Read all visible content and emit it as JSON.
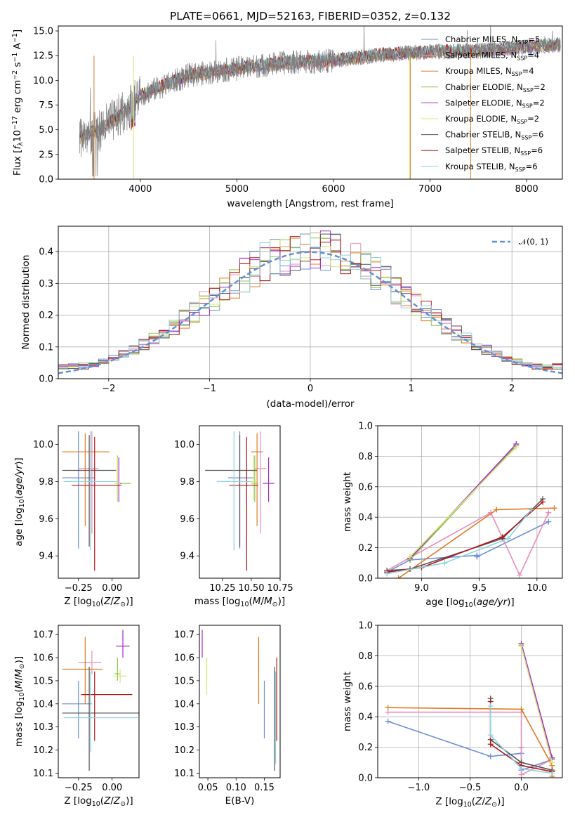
{
  "colors": {
    "Chabrier MILES": "#6a8ed8",
    "Salpeter MILES": "#e88cb8",
    "Kroupa MILES": "#e07a22",
    "Chabrier ELODIE": "#8fc250",
    "Salpeter ELODIE": "#a52cc8",
    "Kroupa ELODIE": "#d8e67a",
    "Chabrier STELIB": "#555555",
    "Salpeter STELIB": "#b01818",
    "Kroupa STELIB": "#90d0e0",
    "normal_curve": "#6090d8",
    "spectrum_data": "#808080"
  },
  "chart_data": [
    {
      "type": "line",
      "title": "PLATE=0661, MJD=52163, FIBERID=0352, z=0.132",
      "xlabel": "wavelength [Angstrom, rest frame]",
      "ylabel": "Flux [f_λ 10^-17 erg cm^-2 s^-1 A^-1]",
      "xlim": [
        3150,
        8370
      ],
      "ylim": [
        0,
        15.5
      ],
      "xticks": [
        "4000",
        "5000",
        "6000",
        "7000",
        "8000"
      ],
      "yticks": [
        "0.0",
        "2.5",
        "5.0",
        "7.5",
        "10.0",
        "12.5",
        "15.0"
      ],
      "legend_position": "upper right",
      "series": [
        {
          "name": "Chabrier MILES",
          "nssp": "5"
        },
        {
          "name": "Salpeter MILES",
          "nssp": "4"
        },
        {
          "name": "Kroupa MILES",
          "nssp": "4"
        },
        {
          "name": "Chabrier ELODIE",
          "nssp": "2"
        },
        {
          "name": "Salpeter ELODIE",
          "nssp": "2"
        },
        {
          "name": "Kroupa ELODIE",
          "nssp": "2"
        },
        {
          "name": "Chabrier STELIB",
          "nssp": "6"
        },
        {
          "name": "Salpeter STELIB",
          "nssp": "6"
        },
        {
          "name": "Kroupa STELIB",
          "nssp": "6"
        }
      ],
      "spectrum_trend": {
        "x": [
          3370,
          3550,
          3800,
          4000,
          4500,
          5000,
          5500,
          6000,
          6500,
          7000,
          7500,
          8000,
          8350
        ],
        "y": [
          4.3,
          4.8,
          6.5,
          8.5,
          10.5,
          11.2,
          11.8,
          12.0,
          12.6,
          12.9,
          13.0,
          13.4,
          13.6
        ]
      }
    },
    {
      "type": "histogram",
      "xlabel": "(data-model)/error",
      "ylabel": "Normed distribution",
      "xlim": [
        -2.5,
        2.5
      ],
      "ylim": [
        0,
        0.48
      ],
      "xticks": [
        "−2",
        "−1",
        "0",
        "1",
        "2"
      ],
      "yticks": [
        "0.0",
        "0.1",
        "0.2",
        "0.3",
        "0.4"
      ],
      "grid": true,
      "legend": "$\\mathcal{N}(0, 1)$",
      "legend_label": "𝒩(0, 1)",
      "bin_width": 0.1
    },
    {
      "type": "errorbar",
      "xlabel": "Z [log10(Z/Z⊙)]",
      "ylabel": "age [log10(age/yr)]",
      "xlim": [
        -0.4,
        0.2
      ],
      "ylim": [
        9.28,
        10.1
      ],
      "xticks": [
        "−0.25",
        "0.00"
      ],
      "yticks": [
        "9.4",
        "9.6",
        "9.8",
        "10.0"
      ],
      "points": [
        {
          "series": "Chabrier MILES",
          "x": -0.25,
          "xerr": [
            0.12,
            0.12
          ],
          "y": 9.82,
          "yerr": [
            0.38,
            0.25
          ]
        },
        {
          "series": "Salpeter MILES",
          "x": -0.15,
          "xerr": [
            0.1,
            0.05
          ],
          "y": 9.87,
          "yerr": [
            0.35,
            0.2
          ]
        },
        {
          "series": "Kroupa MILES",
          "x": -0.2,
          "xerr": [
            0.17,
            0.18
          ],
          "y": 9.96,
          "yerr": [
            0.4,
            0.1
          ]
        },
        {
          "series": "Chabrier ELODIE",
          "x": 0.04,
          "xerr": [
            0.02,
            0.1
          ],
          "y": 9.79,
          "yerr": [
            0.1,
            0.15
          ]
        },
        {
          "series": "Salpeter ELODIE",
          "x": 0.05,
          "xerr": [
            0.02,
            0.02
          ],
          "y": 9.79,
          "yerr": [
            0.1,
            0.14
          ]
        },
        {
          "series": "Kroupa ELODIE",
          "x": 0.04,
          "xerr": [
            0.02,
            0.02
          ],
          "y": 9.79,
          "yerr": [
            0.1,
            0.14
          ]
        },
        {
          "series": "Chabrier STELIB",
          "x": -0.17,
          "xerr": [
            0.2,
            0.2
          ],
          "y": 9.86,
          "yerr": [
            0.41,
            0.19
          ]
        },
        {
          "series": "Salpeter STELIB",
          "x": -0.13,
          "xerr": [
            0.17,
            0.2
          ],
          "y": 9.78,
          "yerr": [
            0.46,
            0.26
          ]
        },
        {
          "series": "Kroupa STELIB",
          "x": -0.16,
          "xerr": [
            0.2,
            0.2
          ],
          "y": 9.8,
          "yerr": [
            0.37,
            0.27
          ]
        }
      ]
    },
    {
      "type": "errorbar",
      "xlabel": "mass [log10(M/M⊙)]",
      "ylabel": "",
      "xlim": [
        10.05,
        10.75
      ],
      "ylim": [
        9.28,
        10.1
      ],
      "xticks": [
        "10.25",
        "10.50",
        "10.75"
      ],
      "yticks": [
        "9.4",
        "9.6",
        "9.8",
        "10.0"
      ],
      "points": [
        {
          "series": "Chabrier MILES",
          "x": 10.4,
          "xerr": [
            0.1,
            0.12
          ],
          "y": 9.82,
          "yerr": [
            0.38,
            0.25
          ]
        },
        {
          "series": "Salpeter MILES",
          "x": 10.58,
          "xerr": [
            0.05,
            0.05
          ],
          "y": 9.87,
          "yerr": [
            0.35,
            0.2
          ]
        },
        {
          "series": "Kroupa MILES",
          "x": 10.55,
          "xerr": [
            0.05,
            0.05
          ],
          "y": 9.96,
          "yerr": [
            0.4,
            0.1
          ]
        },
        {
          "series": "Chabrier ELODIE",
          "x": 10.53,
          "xerr": [
            0.03,
            0.03
          ],
          "y": 9.79,
          "yerr": [
            0.1,
            0.15
          ]
        },
        {
          "series": "Salpeter ELODIE",
          "x": 10.65,
          "xerr": [
            0.05,
            0.05
          ],
          "y": 9.79,
          "yerr": [
            0.1,
            0.14
          ]
        },
        {
          "series": "Kroupa ELODIE",
          "x": 10.52,
          "xerr": [
            0.03,
            0.03
          ],
          "y": 9.8,
          "yerr": [
            0.1,
            0.14
          ]
        },
        {
          "series": "Chabrier STELIB",
          "x": 10.4,
          "xerr": [
            0.3,
            0.15
          ],
          "y": 9.86,
          "yerr": [
            0.41,
            0.19
          ]
        },
        {
          "series": "Salpeter STELIB",
          "x": 10.46,
          "xerr": [
            0.15,
            0.1
          ],
          "y": 9.78,
          "yerr": [
            0.46,
            0.26
          ]
        },
        {
          "series": "Kroupa STELIB",
          "x": 10.35,
          "xerr": [
            0.15,
            0.15
          ],
          "y": 9.8,
          "yerr": [
            0.37,
            0.27
          ]
        }
      ]
    },
    {
      "type": "line",
      "xlabel": "age  [log10(age/yr)]",
      "ylabel": "mass weight",
      "xlim": [
        8.62,
        10.22
      ],
      "ylim": [
        0,
        1.0
      ],
      "xticks": [
        "9.0",
        "9.5",
        "10.0"
      ],
      "yticks": [
        "0.0",
        "0.2",
        "0.4",
        "0.6",
        "0.8",
        "1.0"
      ],
      "grid": true,
      "series": [
        {
          "name": "Chabrier MILES",
          "x": [
            8.7,
            8.9,
            9.48,
            9.48,
            10.1
          ],
          "y": [
            0.04,
            0.12,
            0.15,
            0.14,
            0.37
          ]
        },
        {
          "name": "Salpeter MILES",
          "x": [
            8.7,
            9.6,
            9.85,
            10.1
          ],
          "y": [
            0.05,
            0.43,
            0.02,
            0.43
          ]
        },
        {
          "name": "Kroupa MILES",
          "x": [
            8.8,
            9.65,
            10.15
          ],
          "y": [
            0.0,
            0.45,
            0.46
          ]
        },
        {
          "name": "Chabrier ELODIE",
          "x": [
            8.9,
            9.82
          ],
          "y": [
            0.12,
            0.87
          ]
        },
        {
          "name": "Salpeter ELODIE",
          "x": [
            8.9,
            9.82
          ],
          "y": [
            0.13,
            0.88
          ]
        },
        {
          "name": "Kroupa ELODIE",
          "x": [
            8.9,
            9.82
          ],
          "y": [
            0.14,
            0.86
          ]
        },
        {
          "name": "Chabrier STELIB",
          "x": [
            8.7,
            8.9,
            9.7,
            10.05
          ],
          "y": [
            0.05,
            0.06,
            0.26,
            0.52
          ]
        },
        {
          "name": "Salpeter STELIB",
          "x": [
            8.7,
            9.0,
            9.7,
            10.05
          ],
          "y": [
            0.04,
            0.07,
            0.27,
            0.5
          ]
        },
        {
          "name": "Kroupa STELIB",
          "x": [
            8.7,
            9.2,
            9.75,
            9.95
          ],
          "y": [
            0.03,
            0.1,
            0.26,
            0.45
          ]
        }
      ]
    },
    {
      "type": "errorbar",
      "xlabel": "Z [log10(Z/Z⊙)]",
      "ylabel": "mass [log10(M/M⊙)]",
      "xlim": [
        -0.4,
        0.2
      ],
      "ylim": [
        10.08,
        10.74
      ],
      "xticks": [
        "−0.25",
        "0.00"
      ],
      "yticks": [
        "10.1",
        "10.2",
        "10.3",
        "10.4",
        "10.5",
        "10.6",
        "10.7"
      ],
      "points": [
        {
          "series": "Chabrier MILES",
          "x": -0.25,
          "xerr": [
            0.12,
            0.1
          ],
          "y": 10.4,
          "yerr": [
            0.15,
            0.1
          ]
        },
        {
          "series": "Salpeter MILES",
          "x": -0.15,
          "xerr": [
            0.1,
            0.07
          ],
          "y": 10.58,
          "yerr": [
            0.05,
            0.05
          ]
        },
        {
          "series": "Kroupa MILES",
          "x": -0.2,
          "xerr": [
            0.17,
            0.13
          ],
          "y": 10.55,
          "yerr": [
            0.15,
            0.14
          ]
        },
        {
          "series": "Chabrier ELODIE",
          "x": 0.04,
          "xerr": [
            0.02,
            0.02
          ],
          "y": 10.53,
          "yerr": [
            0.03,
            0.07
          ]
        },
        {
          "series": "Salpeter ELODIE",
          "x": 0.08,
          "xerr": [
            0.05,
            0.05
          ],
          "y": 10.65,
          "yerr": [
            0.05,
            0.07
          ]
        },
        {
          "series": "Kroupa ELODIE",
          "x": 0.06,
          "xerr": [
            0.05,
            0.05
          ],
          "y": 10.52,
          "yerr": [
            0.03,
            0.03
          ]
        },
        {
          "series": "Chabrier STELIB",
          "x": -0.17,
          "xerr": [
            0.2,
            0.37
          ],
          "y": 10.36,
          "yerr": [
            0.25,
            0.2
          ]
        },
        {
          "series": "Salpeter STELIB",
          "x": -0.13,
          "xerr": [
            0.1,
            0.28
          ],
          "y": 10.44,
          "yerr": [
            0.2,
            0.1
          ]
        },
        {
          "series": "Kroupa STELIB",
          "x": -0.16,
          "xerr": [
            0.2,
            0.35
          ],
          "y": 10.34,
          "yerr": [
            0.15,
            0.2
          ]
        }
      ]
    },
    {
      "type": "errorbar",
      "xlabel": "E(B-V)",
      "ylabel": "",
      "xlim": [
        0.035,
        0.178
      ],
      "ylim": [
        10.08,
        10.74
      ],
      "xticks": [
        "0.05",
        "0.10",
        "0.15"
      ],
      "yticks": [
        "10.1",
        "10.2",
        "10.3",
        "10.4",
        "10.5",
        "10.6",
        "10.7"
      ],
      "points": [
        {
          "series": "Chabrier MILES",
          "x": 0.15,
          "y": 10.4,
          "yerr": [
            0.15,
            0.1
          ]
        },
        {
          "series": "Salpeter MILES",
          "x": 0.14,
          "y": 10.58,
          "yerr": [
            0.05,
            0.05
          ]
        },
        {
          "series": "Kroupa MILES",
          "x": 0.14,
          "y": 10.55,
          "yerr": [
            0.15,
            0.14
          ]
        },
        {
          "series": "Chabrier ELODIE",
          "x": 0.048,
          "y": 10.53,
          "yerr": [
            0.03,
            0.07
          ]
        },
        {
          "series": "Salpeter ELODIE",
          "x": 0.04,
          "y": 10.65,
          "yerr": [
            0.05,
            0.07
          ]
        },
        {
          "series": "Kroupa ELODIE",
          "x": 0.048,
          "y": 10.52,
          "yerr": [
            0.08,
            0.08
          ]
        },
        {
          "series": "Chabrier STELIB",
          "x": 0.168,
          "y": 10.36,
          "yerr": [
            0.25,
            0.2
          ]
        },
        {
          "series": "Salpeter STELIB",
          "x": 0.172,
          "y": 10.44,
          "yerr": [
            0.2,
            0.16
          ]
        },
        {
          "series": "Kroupa STELIB",
          "x": 0.17,
          "y": 10.34,
          "yerr": [
            0.2,
            0.2
          ]
        }
      ]
    },
    {
      "type": "line",
      "xlabel": "Z [log10(Z/Z⊙)]",
      "ylabel": "mass weight",
      "xlim": [
        -1.4,
        0.4
      ],
      "ylim": [
        0,
        1.0
      ],
      "xticks": [
        "−1.0",
        "−0.5",
        "0.0"
      ],
      "yticks": [
        "0.0",
        "0.2",
        "0.4",
        "0.6",
        "0.8",
        "1.0"
      ],
      "grid": true,
      "series": [
        {
          "name": "Chabrier MILES",
          "x": [
            -1.3,
            -0.3,
            0.0,
            0.0,
            0.0,
            0.3
          ],
          "y": [
            0.37,
            0.14,
            0.16,
            0.2,
            0.05,
            0.12
          ]
        },
        {
          "name": "Salpeter MILES",
          "x": [
            -1.3,
            0.0,
            0.0,
            0.3
          ],
          "y": [
            0.43,
            0.43,
            0.02,
            0.12
          ]
        },
        {
          "name": "Kroupa MILES",
          "x": [
            -1.3,
            0.0,
            0.3,
            0.3
          ],
          "y": [
            0.46,
            0.45,
            0.08,
            0.01
          ]
        },
        {
          "name": "Chabrier ELODIE",
          "x": [
            0.0,
            0.3
          ],
          "y": [
            0.87,
            0.12
          ]
        },
        {
          "name": "Salpeter ELODIE",
          "x": [
            0.0,
            0.3
          ],
          "y": [
            0.88,
            0.13
          ]
        },
        {
          "name": "Kroupa ELODIE",
          "x": [
            0.0,
            0.3
          ],
          "y": [
            0.86,
            0.1
          ]
        },
        {
          "name": "Chabrier STELIB",
          "x": [
            -0.3,
            -0.3,
            0.0,
            0.3
          ],
          "y": [
            0.52,
            0.25,
            0.1,
            0.05
          ]
        },
        {
          "name": "Salpeter STELIB",
          "x": [
            -0.3,
            -0.3,
            0.0,
            0.3
          ],
          "y": [
            0.5,
            0.22,
            0.08,
            0.04
          ]
        },
        {
          "name": "Kroupa STELIB",
          "x": [
            -0.3,
            -0.3,
            0.0,
            0.3
          ],
          "y": [
            0.47,
            0.28,
            0.06,
            0.03
          ]
        }
      ]
    }
  ]
}
